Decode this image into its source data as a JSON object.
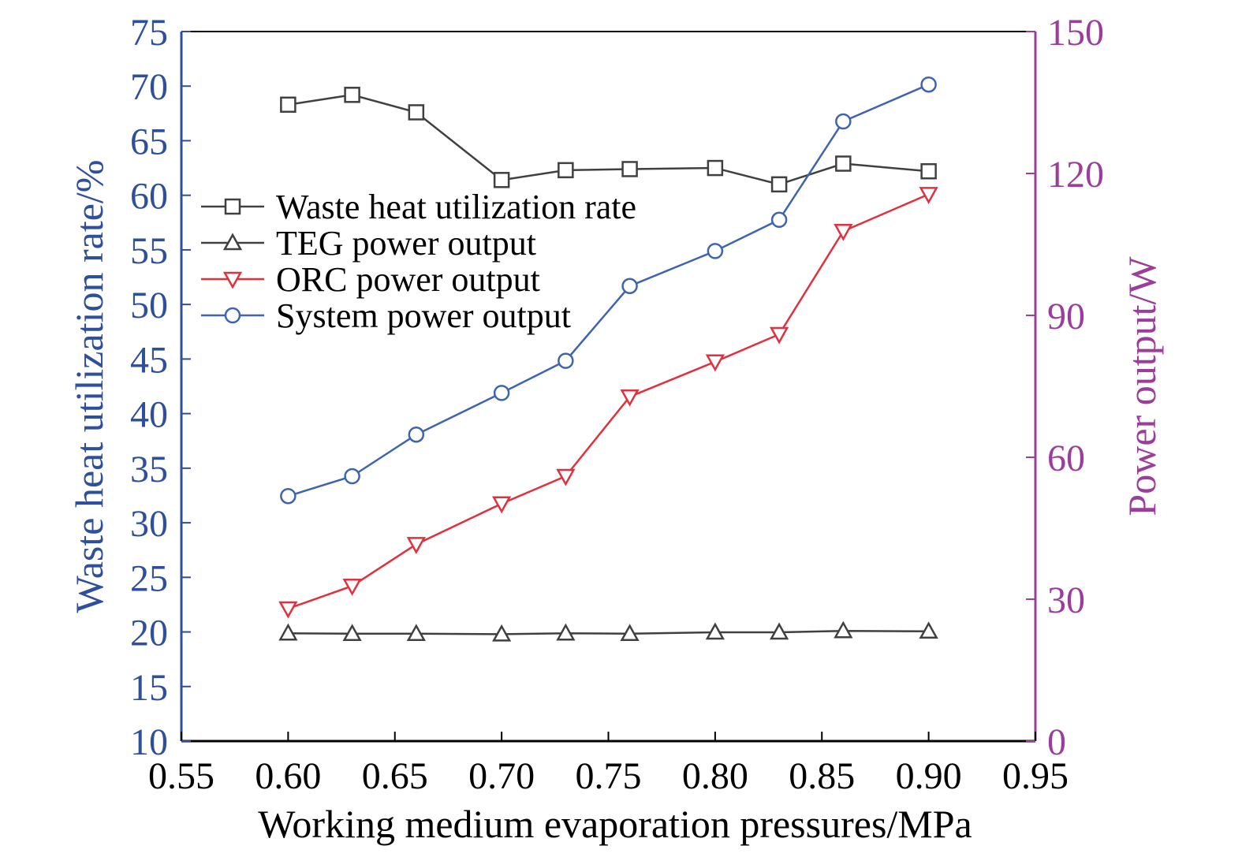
{
  "chart_data": {
    "type": "line",
    "xlabel": "Working medium evaporation pressures/MPa",
    "ylabel_left": "Waste heat utilization rate/%",
    "ylabel_right": "Power output/W",
    "xlim": [
      0.55,
      0.95
    ],
    "ylim_left": [
      10,
      75
    ],
    "ylim_right": [
      0,
      150
    ],
    "x_ticks": [
      "0.55",
      "0.60",
      "0.65",
      "0.70",
      "0.75",
      "0.80",
      "0.85",
      "0.90",
      "0.95"
    ],
    "y_left_ticks": [
      "10",
      "15",
      "20",
      "25",
      "30",
      "35",
      "40",
      "45",
      "50",
      "55",
      "60",
      "65",
      "70",
      "75"
    ],
    "y_right_ticks": [
      "0",
      "30",
      "60",
      "90",
      "120",
      "150"
    ],
    "grid": false,
    "legend_position": "upper-left inside plot",
    "x": [
      0.6,
      0.63,
      0.66,
      0.7,
      0.73,
      0.76,
      0.8,
      0.83,
      0.86,
      0.9
    ],
    "series": [
      {
        "name": "Waste heat utilization rate",
        "axis": "left",
        "marker": "square",
        "color": "#404040",
        "values": [
          68.3,
          69.2,
          67.6,
          61.4,
          62.3,
          62.4,
          62.5,
          61.0,
          62.9,
          62.2
        ]
      },
      {
        "name": "TEG power output",
        "axis": "right",
        "marker": "triangle-up",
        "color": "#404040",
        "values": [
          22.8,
          22.7,
          22.7,
          22.6,
          22.8,
          22.7,
          23.0,
          23.0,
          23.3,
          23.2
        ]
      },
      {
        "name": "ORC power output",
        "axis": "right",
        "marker": "triangle-down",
        "color": "#e0313f",
        "values": [
          28.0,
          32.8,
          41.6,
          50.2,
          56.0,
          72.8,
          80.2,
          86.0,
          107.8,
          115.6
        ]
      },
      {
        "name": "System power output",
        "axis": "right",
        "marker": "circle-cross",
        "color": "#3e64b0",
        "values": [
          51.8,
          56.0,
          64.8,
          73.6,
          80.4,
          96.2,
          103.6,
          110.2,
          131.0,
          138.8
        ]
      }
    ],
    "colors": {
      "left_axis": "#2e4f9b",
      "right_axis": "#9b3e9b",
      "bottom_axis": "#000000"
    }
  }
}
